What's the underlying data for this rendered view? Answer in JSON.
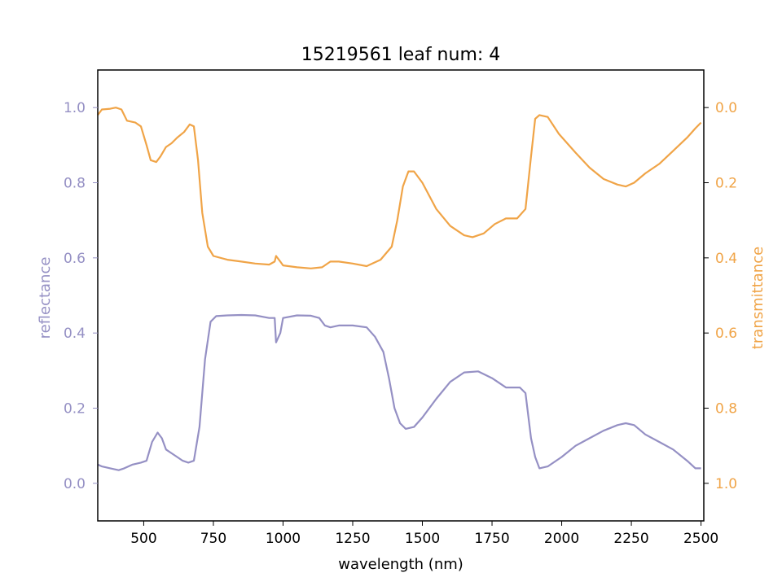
{
  "chart_data": {
    "type": "line",
    "title": "15219561 leaf num: 4",
    "xlabel": "wavelength (nm)",
    "ylabel_left": "reflectance",
    "ylabel_right": "transmittance",
    "xlim": [
      335,
      2510
    ],
    "ylim_left": [
      -0.1,
      1.1
    ],
    "ylim_right_inverted": [
      1.1,
      -0.1
    ],
    "x_ticks": [
      "500",
      "750",
      "1000",
      "1250",
      "1500",
      "1750",
      "2000",
      "2250",
      "2500"
    ],
    "y_left_ticks": [
      "0.0",
      "0.2",
      "0.4",
      "0.6",
      "0.8",
      "1.0"
    ],
    "y_right_ticks": [
      "0.0",
      "0.2",
      "0.4",
      "0.6",
      "0.8",
      "1.0"
    ],
    "grid": false,
    "colors": {
      "reflectance": "#9590c4",
      "transmittance": "#f0a447",
      "axes": "#000000"
    },
    "series": [
      {
        "name": "reflectance",
        "axis": "left",
        "points": [
          [
            335,
            0.05
          ],
          [
            350,
            0.045
          ],
          [
            380,
            0.04
          ],
          [
            410,
            0.035
          ],
          [
            430,
            0.04
          ],
          [
            460,
            0.05
          ],
          [
            490,
            0.055
          ],
          [
            510,
            0.06
          ],
          [
            530,
            0.11
          ],
          [
            550,
            0.135
          ],
          [
            565,
            0.12
          ],
          [
            580,
            0.09
          ],
          [
            600,
            0.08
          ],
          [
            620,
            0.07
          ],
          [
            640,
            0.06
          ],
          [
            660,
            0.055
          ],
          [
            680,
            0.06
          ],
          [
            700,
            0.15
          ],
          [
            720,
            0.33
          ],
          [
            740,
            0.43
          ],
          [
            760,
            0.445
          ],
          [
            800,
            0.447
          ],
          [
            850,
            0.448
          ],
          [
            900,
            0.447
          ],
          [
            950,
            0.44
          ],
          [
            970,
            0.44
          ],
          [
            975,
            0.375
          ],
          [
            990,
            0.4
          ],
          [
            1000,
            0.44
          ],
          [
            1050,
            0.447
          ],
          [
            1100,
            0.446
          ],
          [
            1130,
            0.44
          ],
          [
            1150,
            0.42
          ],
          [
            1170,
            0.415
          ],
          [
            1200,
            0.42
          ],
          [
            1250,
            0.42
          ],
          [
            1300,
            0.415
          ],
          [
            1330,
            0.39
          ],
          [
            1360,
            0.35
          ],
          [
            1380,
            0.28
          ],
          [
            1400,
            0.2
          ],
          [
            1420,
            0.16
          ],
          [
            1440,
            0.145
          ],
          [
            1470,
            0.15
          ],
          [
            1500,
            0.175
          ],
          [
            1550,
            0.225
          ],
          [
            1600,
            0.27
          ],
          [
            1650,
            0.295
          ],
          [
            1700,
            0.298
          ],
          [
            1750,
            0.28
          ],
          [
            1800,
            0.255
          ],
          [
            1850,
            0.255
          ],
          [
            1870,
            0.24
          ],
          [
            1890,
            0.12
          ],
          [
            1905,
            0.07
          ],
          [
            1920,
            0.04
          ],
          [
            1950,
            0.045
          ],
          [
            2000,
            0.07
          ],
          [
            2050,
            0.1
          ],
          [
            2100,
            0.12
          ],
          [
            2150,
            0.14
          ],
          [
            2200,
            0.155
          ],
          [
            2230,
            0.16
          ],
          [
            2260,
            0.155
          ],
          [
            2300,
            0.13
          ],
          [
            2350,
            0.11
          ],
          [
            2400,
            0.09
          ],
          [
            2450,
            0.06
          ],
          [
            2480,
            0.04
          ],
          [
            2500,
            0.04
          ]
        ]
      },
      {
        "name": "transmittance",
        "axis": "right",
        "points": [
          [
            335,
            0.02
          ],
          [
            350,
            0.005
          ],
          [
            380,
            0.003
          ],
          [
            400,
            0.0
          ],
          [
            420,
            0.005
          ],
          [
            440,
            0.035
          ],
          [
            470,
            0.04
          ],
          [
            490,
            0.05
          ],
          [
            510,
            0.1
          ],
          [
            525,
            0.14
          ],
          [
            545,
            0.145
          ],
          [
            560,
            0.13
          ],
          [
            580,
            0.105
          ],
          [
            600,
            0.095
          ],
          [
            620,
            0.08
          ],
          [
            645,
            0.065
          ],
          [
            665,
            0.045
          ],
          [
            680,
            0.05
          ],
          [
            695,
            0.14
          ],
          [
            710,
            0.28
          ],
          [
            730,
            0.37
          ],
          [
            750,
            0.395
          ],
          [
            800,
            0.405
          ],
          [
            850,
            0.41
          ],
          [
            900,
            0.415
          ],
          [
            950,
            0.418
          ],
          [
            970,
            0.41
          ],
          [
            975,
            0.395
          ],
          [
            990,
            0.41
          ],
          [
            1000,
            0.42
          ],
          [
            1050,
            0.425
          ],
          [
            1100,
            0.428
          ],
          [
            1140,
            0.425
          ],
          [
            1170,
            0.41
          ],
          [
            1200,
            0.41
          ],
          [
            1250,
            0.415
          ],
          [
            1300,
            0.422
          ],
          [
            1350,
            0.405
          ],
          [
            1390,
            0.37
          ],
          [
            1410,
            0.3
          ],
          [
            1430,
            0.21
          ],
          [
            1450,
            0.17
          ],
          [
            1470,
            0.17
          ],
          [
            1500,
            0.2
          ],
          [
            1550,
            0.27
          ],
          [
            1600,
            0.315
          ],
          [
            1650,
            0.34
          ],
          [
            1680,
            0.345
          ],
          [
            1720,
            0.335
          ],
          [
            1760,
            0.31
          ],
          [
            1800,
            0.295
          ],
          [
            1840,
            0.295
          ],
          [
            1870,
            0.27
          ],
          [
            1890,
            0.13
          ],
          [
            1905,
            0.03
          ],
          [
            1920,
            0.02
          ],
          [
            1950,
            0.025
          ],
          [
            1990,
            0.07
          ],
          [
            2050,
            0.12
          ],
          [
            2100,
            0.16
          ],
          [
            2150,
            0.19
          ],
          [
            2200,
            0.205
          ],
          [
            2230,
            0.21
          ],
          [
            2260,
            0.2
          ],
          [
            2300,
            0.175
          ],
          [
            2350,
            0.15
          ],
          [
            2400,
            0.115
          ],
          [
            2450,
            0.08
          ],
          [
            2480,
            0.055
          ],
          [
            2500,
            0.04
          ]
        ]
      }
    ]
  }
}
